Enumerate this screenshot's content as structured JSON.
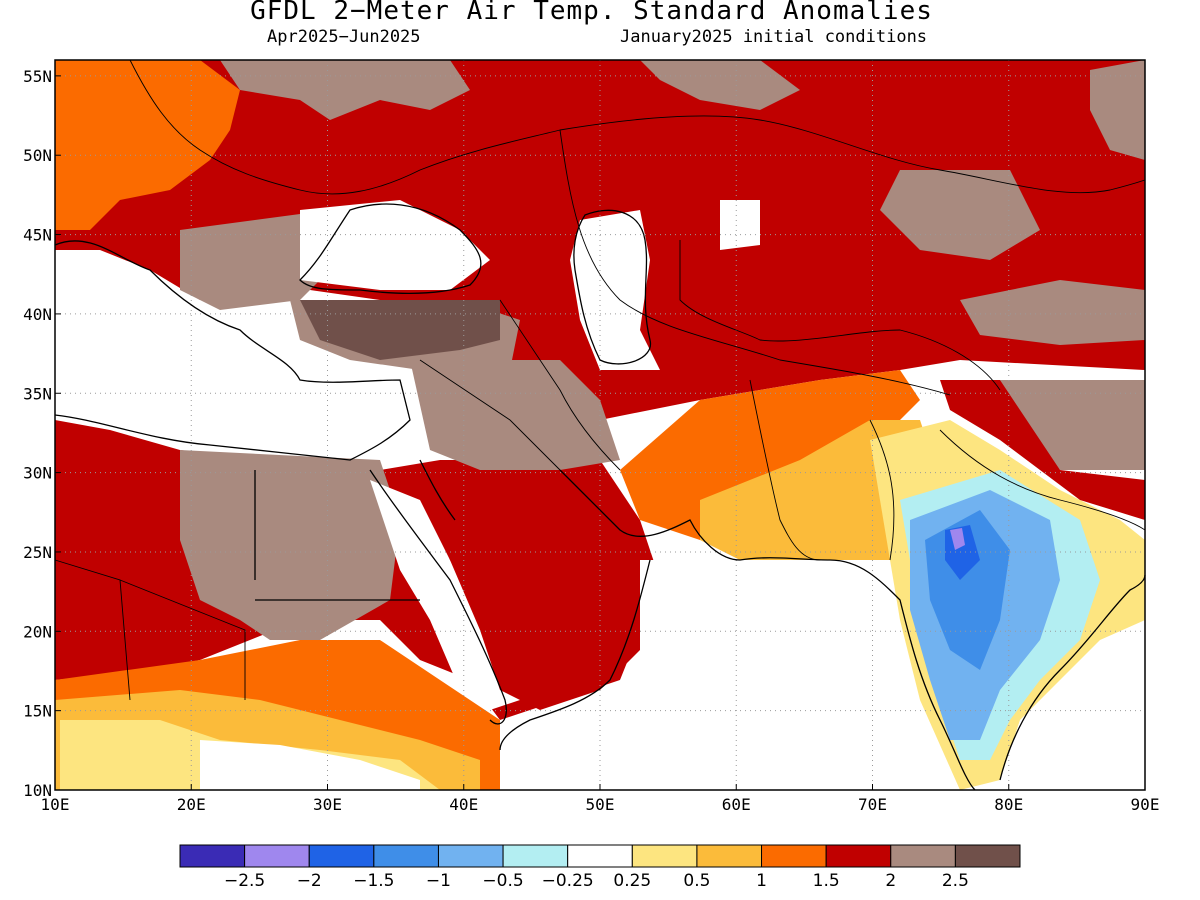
{
  "title": "GFDL 2−Meter Air Temp. Standard Anomalies",
  "subtitle_left": "Apr2025−Jun2025",
  "subtitle_right": "January2025 initial conditions",
  "map": {
    "lon_range": [
      10,
      90
    ],
    "lat_range": [
      10,
      56
    ],
    "lon_ticks": [
      "10E",
      "20E",
      "30E",
      "40E",
      "50E",
      "60E",
      "70E",
      "80E",
      "90E"
    ],
    "lat_ticks": [
      "10N",
      "15N",
      "20N",
      "25N",
      "30N",
      "35N",
      "40N",
      "45N",
      "50N",
      "55N"
    ],
    "grid": "dotted"
  },
  "legend": {
    "colors": [
      "#3a2bb5",
      "#9f87ee",
      "#1f63e6",
      "#3f8ee8",
      "#71b2f0",
      "#b3eef2",
      "#ffffff",
      "#fde580",
      "#fbbb3a",
      "#fb6b00",
      "#c00000",
      "#a98a7f",
      "#70504a"
    ],
    "labels": [
      "−2.5",
      "−2",
      "−1.5",
      "−1",
      "−0.5",
      "−0.25",
      "0.25",
      "0.5",
      "1",
      "1.5",
      "2",
      "2.5"
    ]
  }
}
